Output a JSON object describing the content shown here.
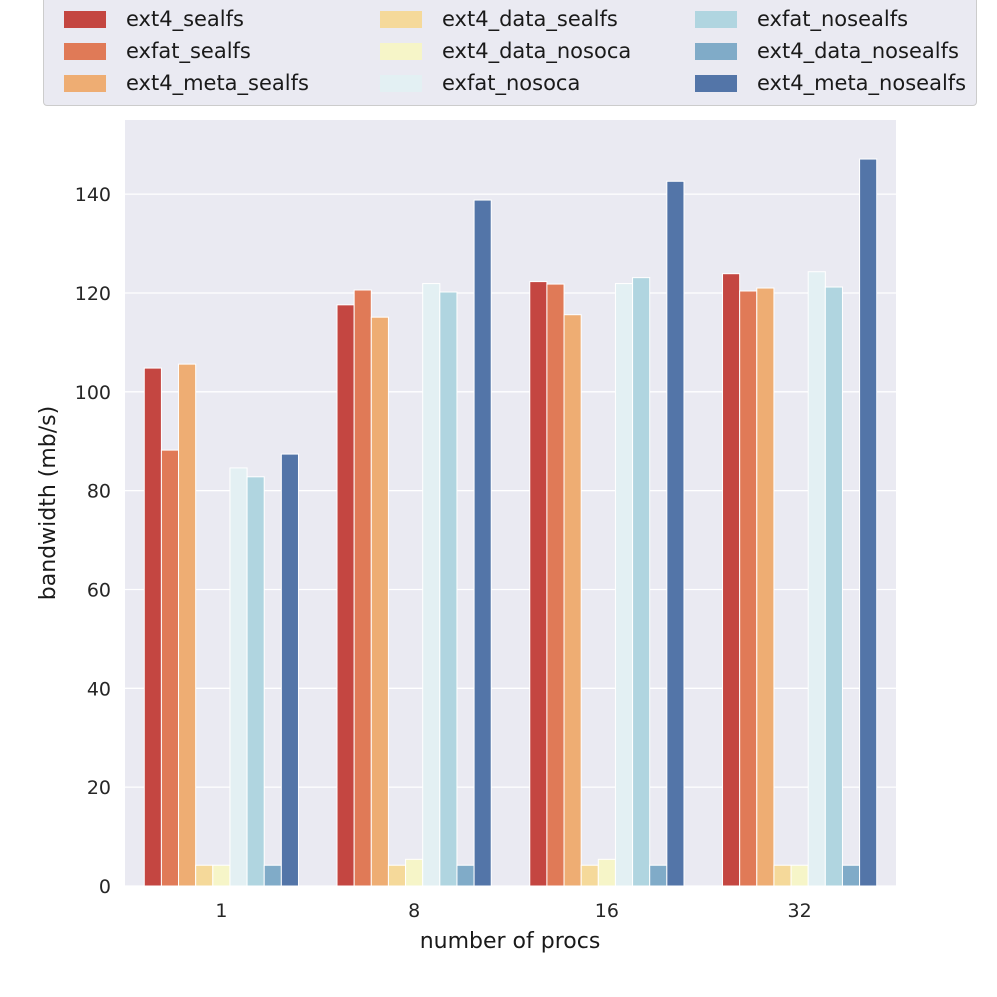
{
  "chart_data": {
    "type": "bar",
    "title": "",
    "xlabel": "number of procs",
    "ylabel": "bandwidth (mb/s)",
    "categories": [
      "1",
      "8",
      "16",
      "32"
    ],
    "ylim": [
      0,
      155
    ],
    "yticks": [
      0,
      20,
      40,
      60,
      80,
      100,
      120,
      140
    ],
    "grid": true,
    "legend_position": "top",
    "series": [
      {
        "name": "ext4_sealfs",
        "color": "#c44641",
        "values": [
          104.8,
          117.6,
          122.3,
          123.9
        ]
      },
      {
        "name": "exfat_sealfs",
        "color": "#e07a57",
        "values": [
          88.2,
          120.6,
          121.8,
          120.4
        ]
      },
      {
        "name": "ext4_meta_sealfs",
        "color": "#eead73",
        "values": [
          105.6,
          115.1,
          115.6,
          121.0
        ]
      },
      {
        "name": "ext4_data_sealfs",
        "color": "#f5d99a",
        "values": [
          4.2,
          4.2,
          4.2,
          4.2
        ]
      },
      {
        "name": "ext4_data_nosoca",
        "color": "#f6f5c8",
        "values": [
          4.2,
          5.4,
          5.4,
          4.2
        ]
      },
      {
        "name": "exfat_nosoca",
        "color": "#e3f0f3",
        "values": [
          84.6,
          121.9,
          121.9,
          124.3
        ]
      },
      {
        "name": "exfat_nosealfs",
        "color": "#b0d5e0",
        "values": [
          82.8,
          120.2,
          123.1,
          121.2
        ]
      },
      {
        "name": "ext4_data_nosealfs",
        "color": "#80abc8",
        "values": [
          4.2,
          4.2,
          4.2,
          4.2
        ]
      },
      {
        "name": "ext4_meta_nosealfs",
        "color": "#5375a8",
        "values": [
          87.4,
          138.8,
          142.6,
          147.1
        ]
      }
    ]
  }
}
